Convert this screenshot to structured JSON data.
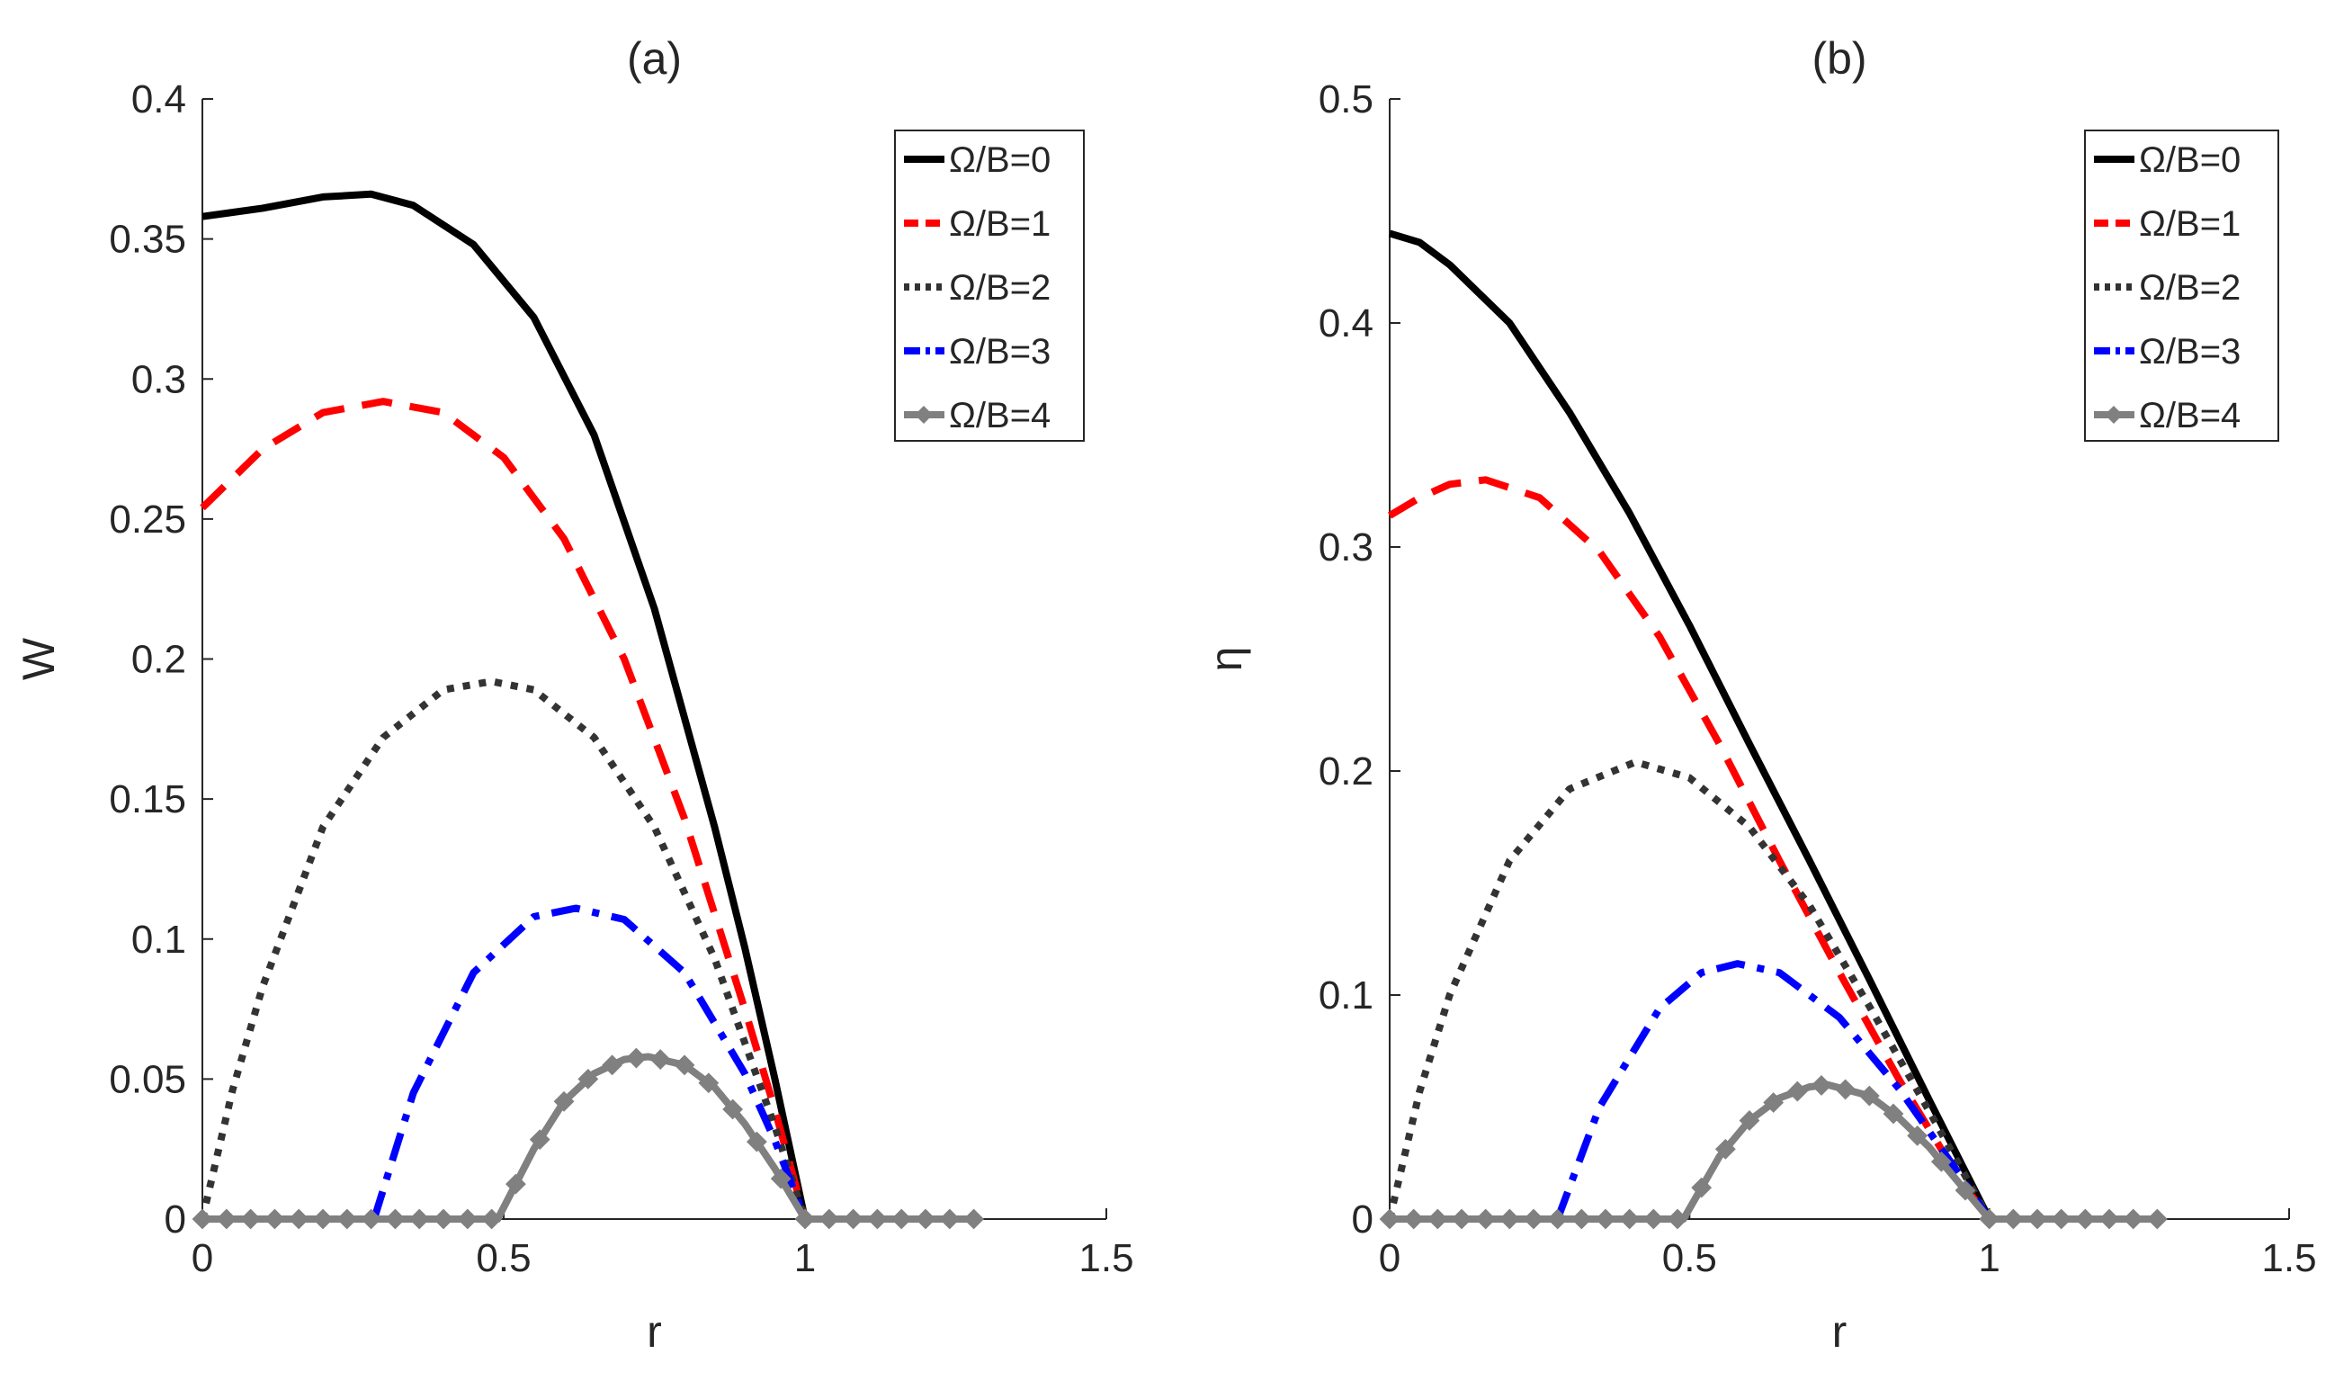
{
  "chart_data": [
    {
      "type": "line",
      "title": "(a)",
      "xlabel": "r",
      "ylabel": "W",
      "xlim": [
        0,
        1.5
      ],
      "ylim": [
        0,
        0.4
      ],
      "xticks": [
        0,
        0.5,
        1,
        1.5
      ],
      "yticks": [
        0,
        0.05,
        0.1,
        0.15,
        0.2,
        0.25,
        0.3,
        0.35,
        0.4
      ],
      "xtick_labels": [
        "0",
        "0.5",
        "1",
        "1.5"
      ],
      "ytick_labels": [
        "0",
        "0.05",
        "0.1",
        "0.15",
        "0.2",
        "0.25",
        "0.3",
        "0.35",
        "0.4"
      ],
      "grid": false,
      "legend_position": "top-right",
      "series": [
        {
          "name": "Ω/B=0",
          "color": "#000000",
          "style": "solid",
          "x": [
            0,
            0.1,
            0.2,
            0.28,
            0.35,
            0.45,
            0.55,
            0.65,
            0.75,
            0.85,
            0.9,
            0.95,
            1.0
          ],
          "y": [
            0.358,
            0.361,
            0.365,
            0.366,
            0.362,
            0.348,
            0.322,
            0.28,
            0.218,
            0.14,
            0.097,
            0.05,
            0.0
          ]
        },
        {
          "name": "Ω/B=1",
          "color": "#ff0000",
          "style": "dashed",
          "x": [
            0,
            0.1,
            0.2,
            0.3,
            0.4,
            0.5,
            0.6,
            0.7,
            0.8,
            0.9,
            0.95,
            1.0
          ],
          "y": [
            0.254,
            0.275,
            0.288,
            0.292,
            0.288,
            0.272,
            0.243,
            0.2,
            0.143,
            0.075,
            0.039,
            0.0
          ]
        },
        {
          "name": "Ω/B=2",
          "color": "#333333",
          "style": "dotted",
          "x": [
            0,
            0.05,
            0.1,
            0.2,
            0.3,
            0.4,
            0.48,
            0.55,
            0.65,
            0.75,
            0.85,
            0.95,
            1.0
          ],
          "y": [
            0.0,
            0.046,
            0.083,
            0.14,
            0.172,
            0.189,
            0.192,
            0.189,
            0.172,
            0.14,
            0.093,
            0.033,
            0.0
          ]
        },
        {
          "name": "Ω/B=3",
          "color": "#0000ff",
          "style": "dashdot",
          "x": [
            0.285,
            0.35,
            0.45,
            0.55,
            0.62,
            0.7,
            0.8,
            0.9,
            0.95,
            1.0
          ],
          "y": [
            0.0,
            0.045,
            0.088,
            0.108,
            0.111,
            0.107,
            0.088,
            0.052,
            0.028,
            0.0
          ]
        },
        {
          "name": "Ω/B=4",
          "color": "#808080",
          "style": "solid-diamond",
          "x": [
            0,
            0.1,
            0.2,
            0.3,
            0.4,
            0.49,
            0.55,
            0.6,
            0.65,
            0.7,
            0.74,
            0.8,
            0.85,
            0.9,
            0.95,
            1.0,
            1.05,
            1.1,
            1.2,
            1.28
          ],
          "y": [
            0,
            0,
            0,
            0,
            0,
            0,
            0.025,
            0.042,
            0.052,
            0.057,
            0.058,
            0.055,
            0.047,
            0.034,
            0.018,
            0,
            0,
            0,
            0,
            0
          ]
        }
      ]
    },
    {
      "type": "line",
      "title": "(b)",
      "xlabel": "r",
      "ylabel": "η",
      "xlim": [
        0,
        1.5
      ],
      "ylim": [
        0,
        0.5
      ],
      "xticks": [
        0,
        0.5,
        1,
        1.5
      ],
      "yticks": [
        0,
        0.1,
        0.2,
        0.3,
        0.4,
        0.5
      ],
      "xtick_labels": [
        "0",
        "0.5",
        "1",
        "1.5"
      ],
      "ytick_labels": [
        "0",
        "0.1",
        "0.2",
        "0.3",
        "0.4",
        "0.5"
      ],
      "grid": false,
      "legend_position": "top-right",
      "series": [
        {
          "name": "Ω/B=0",
          "color": "#000000",
          "style": "solid",
          "x": [
            0,
            0.05,
            0.1,
            0.2,
            0.3,
            0.4,
            0.5,
            0.6,
            0.7,
            0.8,
            0.9,
            1.0
          ],
          "y": [
            0.44,
            0.436,
            0.426,
            0.4,
            0.36,
            0.315,
            0.265,
            0.212,
            0.16,
            0.107,
            0.053,
            0.0
          ]
        },
        {
          "name": "Ω/B=1",
          "color": "#ff0000",
          "style": "dashed",
          "x": [
            0,
            0.05,
            0.1,
            0.16,
            0.25,
            0.35,
            0.45,
            0.55,
            0.65,
            0.75,
            0.85,
            0.95,
            1.0
          ],
          "y": [
            0.314,
            0.322,
            0.328,
            0.33,
            0.322,
            0.298,
            0.26,
            0.212,
            0.16,
            0.11,
            0.062,
            0.018,
            0.0
          ]
        },
        {
          "name": "Ω/B=2",
          "color": "#333333",
          "style": "dotted",
          "x": [
            0,
            0.05,
            0.1,
            0.2,
            0.3,
            0.41,
            0.5,
            0.6,
            0.7,
            0.8,
            0.9,
            1.0
          ],
          "y": [
            0.0,
            0.057,
            0.1,
            0.16,
            0.192,
            0.204,
            0.197,
            0.175,
            0.14,
            0.095,
            0.048,
            0.0
          ]
        },
        {
          "name": "Ω/B=3",
          "color": "#0000ff",
          "style": "dashdot",
          "x": [
            0.28,
            0.35,
            0.45,
            0.52,
            0.58,
            0.65,
            0.75,
            0.85,
            0.95,
            1.0
          ],
          "y": [
            0.0,
            0.05,
            0.094,
            0.11,
            0.114,
            0.11,
            0.09,
            0.058,
            0.02,
            0.0
          ]
        },
        {
          "name": "Ω/B=4",
          "color": "#808080",
          "style": "solid-diamond",
          "x": [
            0,
            0.1,
            0.2,
            0.3,
            0.4,
            0.49,
            0.55,
            0.6,
            0.65,
            0.7,
            0.73,
            0.8,
            0.85,
            0.9,
            0.95,
            1.0,
            1.05,
            1.1,
            1.2,
            1.28
          ],
          "y": [
            0,
            0,
            0,
            0,
            0,
            0,
            0.028,
            0.044,
            0.054,
            0.059,
            0.06,
            0.055,
            0.045,
            0.032,
            0.016,
            0,
            0,
            0,
            0,
            0
          ]
        }
      ]
    }
  ]
}
